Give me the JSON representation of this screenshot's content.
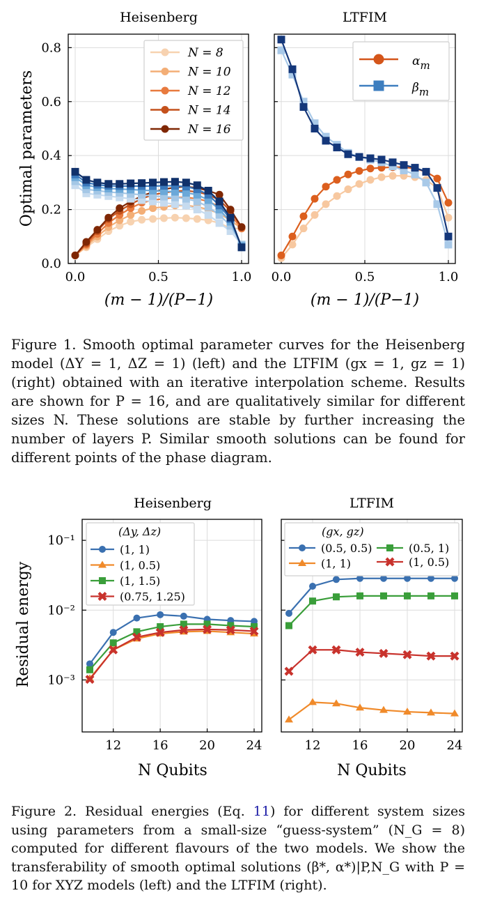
{
  "figure1": {
    "panels": [
      {
        "title": "Heisenberg"
      },
      {
        "title": "LTFIM"
      }
    ],
    "ylabel": "Optimal parameters",
    "xlabel": "(m − 1)/(P−1)",
    "xticks": [
      "0.0",
      "0.5",
      "1.0"
    ],
    "yticks": [
      "0.0",
      "0.2",
      "0.4",
      "0.6",
      "0.8"
    ],
    "legend_left": [
      "N = 8",
      "N = 10",
      "N = 12",
      "N = 14",
      "N = 16"
    ],
    "legend_right": [
      "α_m",
      "β_m"
    ],
    "caption": "Figure 1. Smooth optimal parameter curves for the Heisenberg model (ΔY = 1, ΔZ = 1) (left) and the LTFIM (gx = 1, gz = 1) (right) obtained with an iterative interpolation scheme. Results are shown for P = 16, and are qualitatively similar for different sizes N. These solutions are stable by further increasing the number of layers P. Similar smooth solutions can be found for different points of the phase diagram."
  },
  "figure2": {
    "panels": [
      {
        "title": "Heisenberg"
      },
      {
        "title": "LTFIM"
      }
    ],
    "ylabel": "Residual energy",
    "xlabel": "N Qubits",
    "xticks": [
      "12",
      "16",
      "20",
      "24"
    ],
    "yticks": [
      "10⁻¹",
      "10⁻²",
      "10⁻³"
    ],
    "legend_left_title": "(Δy, Δz)",
    "legend_left": [
      "(1, 1)",
      "(1, 0.5)",
      "(1, 1.5)",
      "(0.75, 1.25)"
    ],
    "legend_right_title": "(gx, gz)",
    "legend_right": [
      "(0.5, 0.5)",
      "(0.5, 1)",
      "(1, 1)",
      "(1, 0.5)"
    ],
    "caption_pre": "Figure 2. Residual energies (Eq. ",
    "caption_ref": "11",
    "caption_post": ") for different system sizes using parameters from a small-size “guess-system” (N_G = 8) computed for different flavours of the two models. We show the transferability of smooth optimal solutions (β*, α*)|P,N_G with P = 10 for XYZ models (left) and the LTFIM (right)."
  },
  "chart_data": [
    {
      "type": "line",
      "panel": "Heisenberg",
      "x": [
        0.0,
        0.0667,
        0.1333,
        0.2,
        0.2667,
        0.3333,
        0.4,
        0.4667,
        0.5333,
        0.6,
        0.6667,
        0.7333,
        0.8,
        0.8667,
        0.9333,
        1.0
      ],
      "xlim": [
        0,
        1
      ],
      "ylim": [
        0,
        0.85
      ],
      "series": [
        {
          "name": "N = 8",
          "param": "α",
          "values": [
            0.03,
            0.06,
            0.09,
            0.12,
            0.14,
            0.155,
            0.162,
            0.165,
            0.168,
            0.17,
            0.168,
            0.165,
            0.16,
            0.15,
            0.13,
            0.13
          ]
        },
        {
          "name": "N = 10",
          "param": "α",
          "values": [
            0.03,
            0.065,
            0.1,
            0.135,
            0.16,
            0.18,
            0.195,
            0.205,
            0.21,
            0.215,
            0.215,
            0.21,
            0.2,
            0.185,
            0.16,
            0.13
          ]
        },
        {
          "name": "N = 12",
          "param": "α",
          "values": [
            0.03,
            0.07,
            0.11,
            0.15,
            0.18,
            0.205,
            0.225,
            0.235,
            0.24,
            0.245,
            0.245,
            0.24,
            0.23,
            0.21,
            0.18,
            0.13
          ]
        },
        {
          "name": "N = 14",
          "param": "α",
          "values": [
            0.03,
            0.075,
            0.12,
            0.165,
            0.195,
            0.22,
            0.24,
            0.255,
            0.262,
            0.268,
            0.27,
            0.265,
            0.255,
            0.235,
            0.195,
            0.135
          ]
        },
        {
          "name": "N = 16",
          "param": "α",
          "values": [
            0.03,
            0.08,
            0.125,
            0.17,
            0.205,
            0.23,
            0.25,
            0.265,
            0.275,
            0.282,
            0.285,
            0.28,
            0.27,
            0.255,
            0.2,
            0.135
          ]
        },
        {
          "name": "N = 8",
          "param": "β",
          "values": [
            0.29,
            0.26,
            0.255,
            0.25,
            0.245,
            0.24,
            0.235,
            0.23,
            0.225,
            0.22,
            0.215,
            0.2,
            0.18,
            0.15,
            0.12,
            0.07
          ]
        },
        {
          "name": "N = 10",
          "param": "β",
          "values": [
            0.305,
            0.275,
            0.27,
            0.265,
            0.262,
            0.258,
            0.255,
            0.25,
            0.248,
            0.245,
            0.24,
            0.23,
            0.21,
            0.18,
            0.14,
            0.07
          ]
        },
        {
          "name": "N = 12",
          "param": "β",
          "values": [
            0.32,
            0.29,
            0.283,
            0.278,
            0.276,
            0.274,
            0.272,
            0.27,
            0.268,
            0.266,
            0.262,
            0.255,
            0.235,
            0.2,
            0.155,
            0.065
          ]
        },
        {
          "name": "N = 14",
          "param": "β",
          "values": [
            0.33,
            0.3,
            0.292,
            0.288,
            0.287,
            0.287,
            0.287,
            0.287,
            0.288,
            0.288,
            0.285,
            0.275,
            0.255,
            0.215,
            0.165,
            0.06
          ]
        },
        {
          "name": "N = 16",
          "param": "β",
          "values": [
            0.34,
            0.31,
            0.3,
            0.295,
            0.295,
            0.297,
            0.298,
            0.3,
            0.302,
            0.303,
            0.3,
            0.29,
            0.27,
            0.23,
            0.17,
            0.06
          ]
        }
      ]
    },
    {
      "type": "line",
      "panel": "LTFIM",
      "x": [
        0.0,
        0.0667,
        0.1333,
        0.2,
        0.2667,
        0.3333,
        0.4,
        0.4667,
        0.5333,
        0.6,
        0.6667,
        0.7333,
        0.8,
        0.8667,
        0.9333,
        1.0
      ],
      "xlim": [
        0,
        1
      ],
      "ylim": [
        0,
        0.85
      ],
      "series": [
        {
          "name": "α_m (N = 8)",
          "values": [
            0.02,
            0.07,
            0.13,
            0.18,
            0.22,
            0.25,
            0.275,
            0.295,
            0.31,
            0.32,
            0.325,
            0.325,
            0.32,
            0.31,
            0.28,
            0.17
          ]
        },
        {
          "name": "α_m (N = 16)",
          "values": [
            0.03,
            0.1,
            0.175,
            0.24,
            0.285,
            0.31,
            0.33,
            0.343,
            0.352,
            0.355,
            0.357,
            0.357,
            0.352,
            0.34,
            0.315,
            0.225
          ]
        },
        {
          "name": "β_m (N = 8)",
          "values": [
            0.79,
            0.7,
            0.6,
            0.52,
            0.47,
            0.44,
            0.41,
            0.395,
            0.385,
            0.375,
            0.36,
            0.345,
            0.33,
            0.3,
            0.22,
            0.07
          ]
        },
        {
          "name": "β_m (N = 16)",
          "values": [
            0.83,
            0.72,
            0.58,
            0.5,
            0.455,
            0.43,
            0.405,
            0.395,
            0.39,
            0.385,
            0.375,
            0.365,
            0.355,
            0.34,
            0.28,
            0.1
          ]
        }
      ]
    },
    {
      "type": "line",
      "panel": "Heisenberg",
      "x": [
        10,
        12,
        14,
        16,
        18,
        20,
        22,
        24
      ],
      "yscale": "log",
      "ylim": [
        0.00018,
        0.2
      ],
      "series": [
        {
          "name": "(1, 1)",
          "values": [
            0.0017,
            0.0048,
            0.0077,
            0.0086,
            0.0082,
            0.0074,
            0.0071,
            0.0069
          ]
        },
        {
          "name": "(1, 0.5)",
          "values": [
            0.00105,
            0.0027,
            0.0039,
            0.0046,
            0.0049,
            0.005,
            0.0048,
            0.0046
          ]
        },
        {
          "name": "(1, 1.5)",
          "values": [
            0.0014,
            0.0034,
            0.0049,
            0.0058,
            0.0063,
            0.0063,
            0.006,
            0.0058
          ]
        },
        {
          "name": "(0.75, 1.25)",
          "values": [
            0.00102,
            0.0027,
            0.0041,
            0.0048,
            0.0052,
            0.0053,
            0.0052,
            0.005
          ]
        }
      ]
    },
    {
      "type": "line",
      "panel": "LTFIM",
      "x": [
        10,
        12,
        14,
        16,
        18,
        20,
        22,
        24
      ],
      "yscale": "log",
      "ylim": [
        0.00018,
        0.2
      ],
      "series": [
        {
          "name": "(0.5, 0.5)",
          "values": [
            0.009,
            0.022,
            0.0275,
            0.0285,
            0.0285,
            0.0285,
            0.0285,
            0.0285
          ]
        },
        {
          "name": "(0.5, 1)",
          "values": [
            0.006,
            0.0135,
            0.0155,
            0.016,
            0.016,
            0.016,
            0.016,
            0.016
          ]
        },
        {
          "name": "(1, 1)",
          "values": [
            0.00027,
            0.00048,
            0.00046,
            0.0004,
            0.00037,
            0.00035,
            0.00034,
            0.00033
          ]
        },
        {
          "name": "(1, 0.5)",
          "values": [
            0.00133,
            0.0027,
            0.0027,
            0.0025,
            0.0024,
            0.0023,
            0.0022,
            0.0022
          ]
        }
      ]
    }
  ]
}
